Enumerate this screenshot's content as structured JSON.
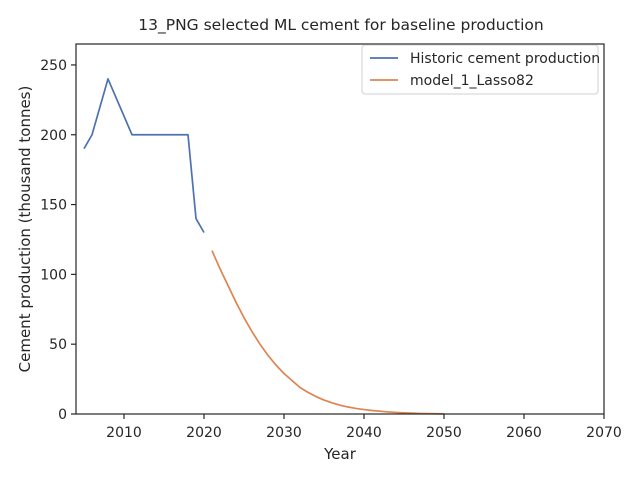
{
  "chart_data": {
    "type": "line",
    "title": "13_PNG selected ML cement for baseline production",
    "xlabel": "Year",
    "ylabel": "Cement production (thousand tonnes)",
    "xlim": [
      2004,
      2070
    ],
    "ylim": [
      0,
      265
    ],
    "xticks": [
      2010,
      2020,
      2030,
      2040,
      2050,
      2060,
      2070
    ],
    "yticks": [
      0,
      50,
      100,
      150,
      200,
      250
    ],
    "grid": false,
    "legend_position": "top-right",
    "series": [
      {
        "name": "Historic cement production",
        "color": "#4c72b0",
        "x": [
          2005,
          2006,
          2008,
          2011,
          2018,
          2019,
          2020
        ],
        "y": [
          190,
          200,
          240,
          200,
          200,
          140,
          130
        ]
      },
      {
        "name": "model_1_Lasso82",
        "color": "#dd8452",
        "x": [
          2021,
          2022,
          2023,
          2024,
          2025,
          2026,
          2027,
          2028,
          2029,
          2030,
          2031,
          2032,
          2033,
          2034,
          2035,
          2036,
          2037,
          2038,
          2039,
          2040,
          2041,
          2042,
          2043,
          2044,
          2045,
          2046,
          2047,
          2048,
          2049,
          2050
        ],
        "y": [
          117,
          104,
          92,
          80,
          69,
          59,
          50,
          42,
          35,
          29,
          24,
          19,
          15.5,
          12.5,
          10,
          8,
          6.3,
          5,
          4,
          3.2,
          2.5,
          2,
          1.5,
          1.1,
          0.8,
          0.6,
          0.4,
          0.3,
          0.2,
          0.1
        ]
      }
    ]
  }
}
